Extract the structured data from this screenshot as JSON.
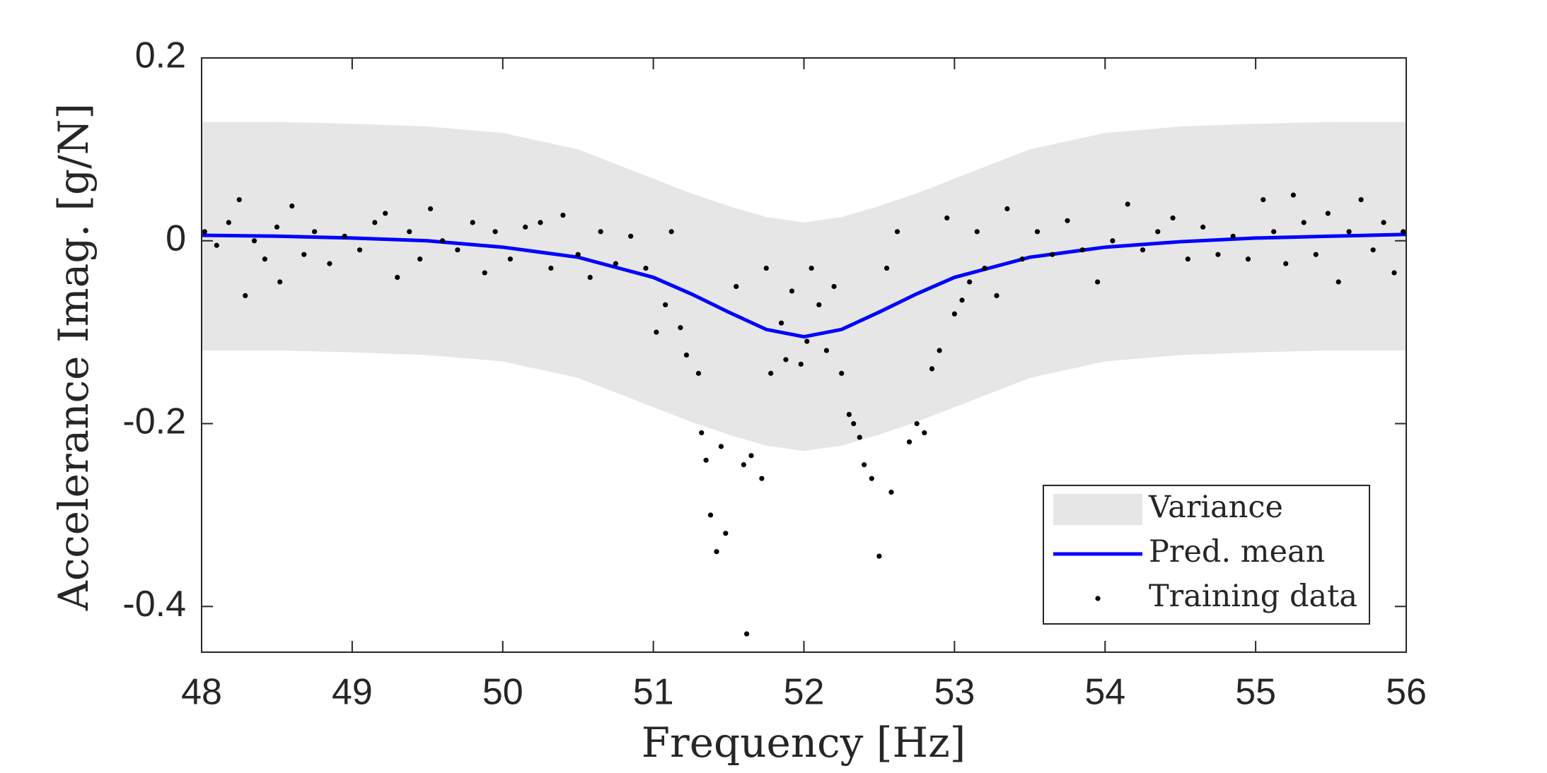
{
  "chart_data": {
    "type": "line",
    "xlabel": "Frequency [Hz]",
    "ylabel": "Accelerance Imag.  [g/N]",
    "xlim": [
      48,
      56
    ],
    "xticks": [
      48,
      49,
      50,
      51,
      52,
      53,
      54,
      55,
      56
    ],
    "ylim": [
      -0.45,
      0.2
    ],
    "yticks": [
      -0.4,
      -0.2,
      0,
      0.2
    ],
    "grid": false,
    "legend": "lower right",
    "series": [
      {
        "name": "Variance",
        "type": "area",
        "color": "#e6e6e6",
        "x": [
          48,
          48.5,
          49,
          49.5,
          50,
          50.5,
          51,
          51.25,
          51.5,
          51.75,
          52,
          52.25,
          52.5,
          52.75,
          53,
          53.5,
          54,
          54.5,
          55,
          55.5,
          56
        ],
        "upper": [
          0.13,
          0.13,
          0.128,
          0.125,
          0.118,
          0.1,
          0.068,
          0.052,
          0.038,
          0.026,
          0.02,
          0.026,
          0.038,
          0.052,
          0.068,
          0.1,
          0.118,
          0.125,
          0.128,
          0.13,
          0.13
        ],
        "lower": [
          -0.12,
          -0.12,
          -0.122,
          -0.125,
          -0.132,
          -0.15,
          -0.182,
          -0.198,
          -0.212,
          -0.224,
          -0.23,
          -0.224,
          -0.212,
          -0.198,
          -0.182,
          -0.15,
          -0.132,
          -0.125,
          -0.122,
          -0.12,
          -0.12
        ]
      },
      {
        "name": "Pred. mean",
        "type": "line",
        "color": "#0000ff",
        "x": [
          48,
          48.5,
          49,
          49.5,
          50,
          50.5,
          51,
          51.25,
          51.5,
          51.75,
          52,
          52.25,
          52.5,
          52.75,
          53,
          53.5,
          54,
          54.5,
          55,
          55.5,
          56
        ],
        "values": [
          0.006,
          0.005,
          0.003,
          0.0,
          -0.007,
          -0.018,
          -0.04,
          -0.058,
          -0.078,
          -0.097,
          -0.105,
          -0.097,
          -0.078,
          -0.058,
          -0.04,
          -0.018,
          -0.007,
          -0.001,
          0.003,
          0.005,
          0.007
        ]
      },
      {
        "name": "Training data",
        "type": "scatter",
        "color": "#000000",
        "x": [
          48.02,
          48.1,
          48.18,
          48.25,
          48.29,
          48.35,
          48.42,
          48.5,
          48.52,
          48.6,
          48.68,
          48.75,
          48.85,
          48.95,
          49.05,
          49.15,
          49.22,
          49.3,
          49.38,
          49.45,
          49.52,
          49.6,
          49.7,
          49.8,
          49.88,
          49.95,
          50.05,
          50.15,
          50.25,
          50.32,
          50.4,
          50.5,
          50.58,
          50.65,
          50.75,
          50.85,
          50.95,
          51.02,
          51.08,
          51.12,
          51.18,
          51.22,
          51.3,
          51.32,
          51.35,
          51.38,
          51.42,
          51.45,
          51.48,
          51.55,
          51.6,
          51.62,
          51.65,
          51.72,
          51.75,
          51.78,
          51.85,
          51.88,
          51.92,
          51.98,
          52.02,
          52.05,
          52.1,
          52.15,
          52.2,
          52.25,
          52.3,
          52.33,
          52.37,
          52.4,
          52.45,
          52.5,
          52.55,
          52.58,
          52.62,
          52.7,
          52.75,
          52.8,
          52.85,
          52.9,
          52.95,
          53.0,
          53.05,
          53.1,
          53.15,
          53.2,
          53.28,
          53.35,
          53.45,
          53.55,
          53.65,
          53.75,
          53.85,
          53.95,
          54.05,
          54.15,
          54.25,
          54.35,
          54.45,
          54.55,
          54.65,
          54.75,
          54.85,
          54.95,
          55.05,
          55.12,
          55.2,
          55.25,
          55.32,
          55.4,
          55.48,
          55.55,
          55.62,
          55.7,
          55.78,
          55.85,
          55.92,
          55.98
        ],
        "values": [
          0.01,
          -0.005,
          0.02,
          0.045,
          -0.06,
          0.0,
          -0.02,
          0.015,
          -0.045,
          0.038,
          -0.015,
          0.01,
          -0.025,
          0.005,
          -0.01,
          0.02,
          0.03,
          -0.04,
          0.01,
          -0.02,
          0.035,
          0.0,
          -0.01,
          0.02,
          -0.035,
          0.01,
          -0.02,
          0.015,
          0.02,
          -0.03,
          0.028,
          -0.015,
          -0.04,
          0.01,
          -0.025,
          0.005,
          -0.03,
          -0.1,
          -0.07,
          0.01,
          -0.095,
          -0.125,
          -0.145,
          -0.21,
          -0.24,
          -0.3,
          -0.34,
          -0.225,
          -0.32,
          -0.05,
          -0.245,
          -0.43,
          -0.235,
          -0.26,
          -0.03,
          -0.145,
          -0.09,
          -0.13,
          -0.055,
          -0.135,
          -0.11,
          -0.03,
          -0.07,
          -0.12,
          -0.05,
          -0.145,
          -0.19,
          -0.2,
          -0.215,
          -0.245,
          -0.26,
          -0.345,
          -0.03,
          -0.275,
          0.01,
          -0.22,
          -0.2,
          -0.21,
          -0.14,
          -0.12,
          0.025,
          -0.08,
          -0.065,
          -0.045,
          0.01,
          -0.03,
          -0.06,
          0.035,
          -0.02,
          0.01,
          -0.015,
          0.022,
          -0.01,
          -0.045,
          0.0,
          0.04,
          -0.01,
          0.01,
          0.025,
          -0.02,
          0.015,
          -0.015,
          0.005,
          -0.02,
          0.045,
          0.01,
          -0.025,
          0.05,
          0.02,
          -0.015,
          0.03,
          -0.045,
          0.01,
          0.045,
          -0.01,
          0.02,
          -0.035,
          0.01
        ]
      }
    ]
  }
}
